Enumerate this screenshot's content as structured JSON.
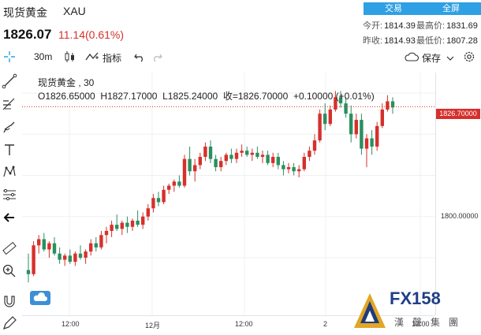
{
  "header": {
    "name": "现货黄金",
    "code": "XAU",
    "price": "1826.07",
    "change": "11.14(0.61%)",
    "trade_btn": "交易",
    "fullscreen_btn": "全屏",
    "stats": [
      {
        "label": "今开:",
        "value": "1814.39"
      },
      {
        "label": "最高价:",
        "value": "1831.69"
      },
      {
        "label": "昨收:",
        "value": "1814.93"
      },
      {
        "label": "最低价:",
        "value": "1807.28"
      }
    ]
  },
  "toolbar": {
    "interval": "30m",
    "indicators": "指标",
    "save": "保存"
  },
  "legend": {
    "title": "现货黄金 , 30",
    "ohlc": "O1826.65000  H1827.17000  L1825.24000  收=1826.70000  +0.10000 (+0.01%)"
  },
  "price_tag": "1826.70000",
  "watermark": {
    "en": "FX158",
    "cn": "漢聲集團"
  },
  "colors": {
    "up": "#d6302b",
    "down": "#2a8f60",
    "accent": "#2ea0e3"
  },
  "chart_data": {
    "type": "candlestick",
    "y_ticks": [
      "1800.00000"
    ],
    "x_ticks": [
      "12:00",
      "12月",
      "12:00",
      "2",
      "12:00"
    ],
    "last": 1826.7,
    "ylim": [
      1776,
      1835
    ],
    "candles": [
      [
        1787.0,
        1791.0,
        1784.0,
        1786.0
      ],
      [
        1786.0,
        1794.0,
        1785.5,
        1793.0
      ],
      [
        1793.0,
        1795.5,
        1791.0,
        1794.5
      ],
      [
        1794.5,
        1796.0,
        1791.5,
        1792.0
      ],
      [
        1792.0,
        1794.0,
        1790.0,
        1793.5
      ],
      [
        1793.5,
        1795.0,
        1790.5,
        1791.0
      ],
      [
        1791.0,
        1792.5,
        1788.5,
        1789.5
      ],
      [
        1789.5,
        1791.0,
        1788.0,
        1790.5
      ],
      [
        1790.5,
        1792.0,
        1788.5,
        1789.0
      ],
      [
        1789.0,
        1791.5,
        1788.0,
        1791.0
      ],
      [
        1791.0,
        1793.0,
        1789.5,
        1790.0
      ],
      [
        1790.0,
        1792.0,
        1788.5,
        1791.5
      ],
      [
        1791.5,
        1794.5,
        1790.5,
        1793.5
      ],
      [
        1793.5,
        1795.0,
        1791.5,
        1792.5
      ],
      [
        1792.5,
        1796.5,
        1792.0,
        1795.5
      ],
      [
        1795.5,
        1797.5,
        1793.5,
        1796.5
      ],
      [
        1796.5,
        1799.0,
        1795.0,
        1798.0
      ],
      [
        1798.0,
        1800.5,
        1796.5,
        1797.0
      ],
      [
        1797.0,
        1799.0,
        1795.5,
        1798.5
      ],
      [
        1798.5,
        1800.0,
        1796.0,
        1797.5
      ],
      [
        1797.5,
        1799.5,
        1796.5,
        1799.0
      ],
      [
        1799.0,
        1801.5,
        1797.5,
        1798.0
      ],
      [
        1798.0,
        1801.0,
        1797.0,
        1800.0
      ],
      [
        1800.0,
        1803.0,
        1799.0,
        1802.0
      ],
      [
        1802.0,
        1805.5,
        1801.0,
        1804.5
      ],
      [
        1804.5,
        1806.0,
        1802.5,
        1803.5
      ],
      [
        1803.5,
        1807.5,
        1803.0,
        1806.5
      ],
      [
        1806.5,
        1808.0,
        1805.5,
        1807.5
      ],
      [
        1807.5,
        1809.0,
        1806.0,
        1808.5
      ],
      [
        1808.5,
        1810.0,
        1807.0,
        1807.5
      ],
      [
        1807.5,
        1815.0,
        1807.0,
        1814.0
      ],
      [
        1814.0,
        1817.0,
        1810.0,
        1811.0
      ],
      [
        1811.0,
        1814.0,
        1808.5,
        1812.5
      ],
      [
        1812.5,
        1815.5,
        1811.5,
        1814.5
      ],
      [
        1814.5,
        1818.0,
        1813.5,
        1817.0
      ],
      [
        1817.0,
        1818.5,
        1813.0,
        1814.0
      ],
      [
        1814.0,
        1815.0,
        1811.0,
        1812.0
      ],
      [
        1812.0,
        1814.5,
        1811.0,
        1813.5
      ],
      [
        1813.5,
        1815.5,
        1812.5,
        1815.0
      ],
      [
        1815.0,
        1816.5,
        1813.0,
        1814.0
      ],
      [
        1814.0,
        1816.5,
        1813.0,
        1815.5
      ],
      [
        1815.5,
        1817.5,
        1814.5,
        1816.0
      ],
      [
        1816.0,
        1817.0,
        1814.5,
        1815.0
      ],
      [
        1815.0,
        1816.5,
        1813.5,
        1815.5
      ],
      [
        1815.5,
        1817.0,
        1814.0,
        1814.5
      ],
      [
        1814.5,
        1816.0,
        1813.0,
        1815.0
      ],
      [
        1815.0,
        1816.0,
        1812.5,
        1813.0
      ],
      [
        1813.0,
        1815.5,
        1812.0,
        1814.5
      ],
      [
        1814.5,
        1815.5,
        1811.5,
        1812.5
      ],
      [
        1812.5,
        1813.5,
        1810.0,
        1811.5
      ],
      [
        1811.5,
        1813.0,
        1810.5,
        1812.0
      ],
      [
        1812.0,
        1813.0,
        1810.0,
        1811.0
      ],
      [
        1811.0,
        1812.5,
        1809.5,
        1811.5
      ],
      [
        1811.5,
        1815.5,
        1811.0,
        1814.5
      ],
      [
        1814.5,
        1817.0,
        1813.5,
        1816.0
      ],
      [
        1816.0,
        1820.0,
        1815.0,
        1818.5
      ],
      [
        1818.5,
        1826.0,
        1818.0,
        1825.0
      ],
      [
        1825.0,
        1827.5,
        1821.0,
        1822.5
      ],
      [
        1822.5,
        1827.0,
        1822.0,
        1826.0
      ],
      [
        1826.0,
        1830.5,
        1825.5,
        1829.0
      ],
      [
        1829.0,
        1830.5,
        1826.5,
        1827.5
      ],
      [
        1827.5,
        1829.0,
        1824.0,
        1825.0
      ],
      [
        1825.0,
        1827.0,
        1818.0,
        1820.0
      ],
      [
        1820.0,
        1825.0,
        1819.0,
        1823.5
      ],
      [
        1823.5,
        1825.0,
        1815.0,
        1816.5
      ],
      [
        1816.5,
        1820.0,
        1812.0,
        1819.0
      ],
      [
        1819.0,
        1821.0,
        1815.0,
        1817.0
      ],
      [
        1817.0,
        1823.0,
        1816.0,
        1822.0
      ],
      [
        1822.0,
        1827.5,
        1821.5,
        1826.0
      ],
      [
        1826.0,
        1829.5,
        1825.5,
        1828.0
      ],
      [
        1828.0,
        1829.0,
        1825.0,
        1826.5
      ]
    ]
  }
}
